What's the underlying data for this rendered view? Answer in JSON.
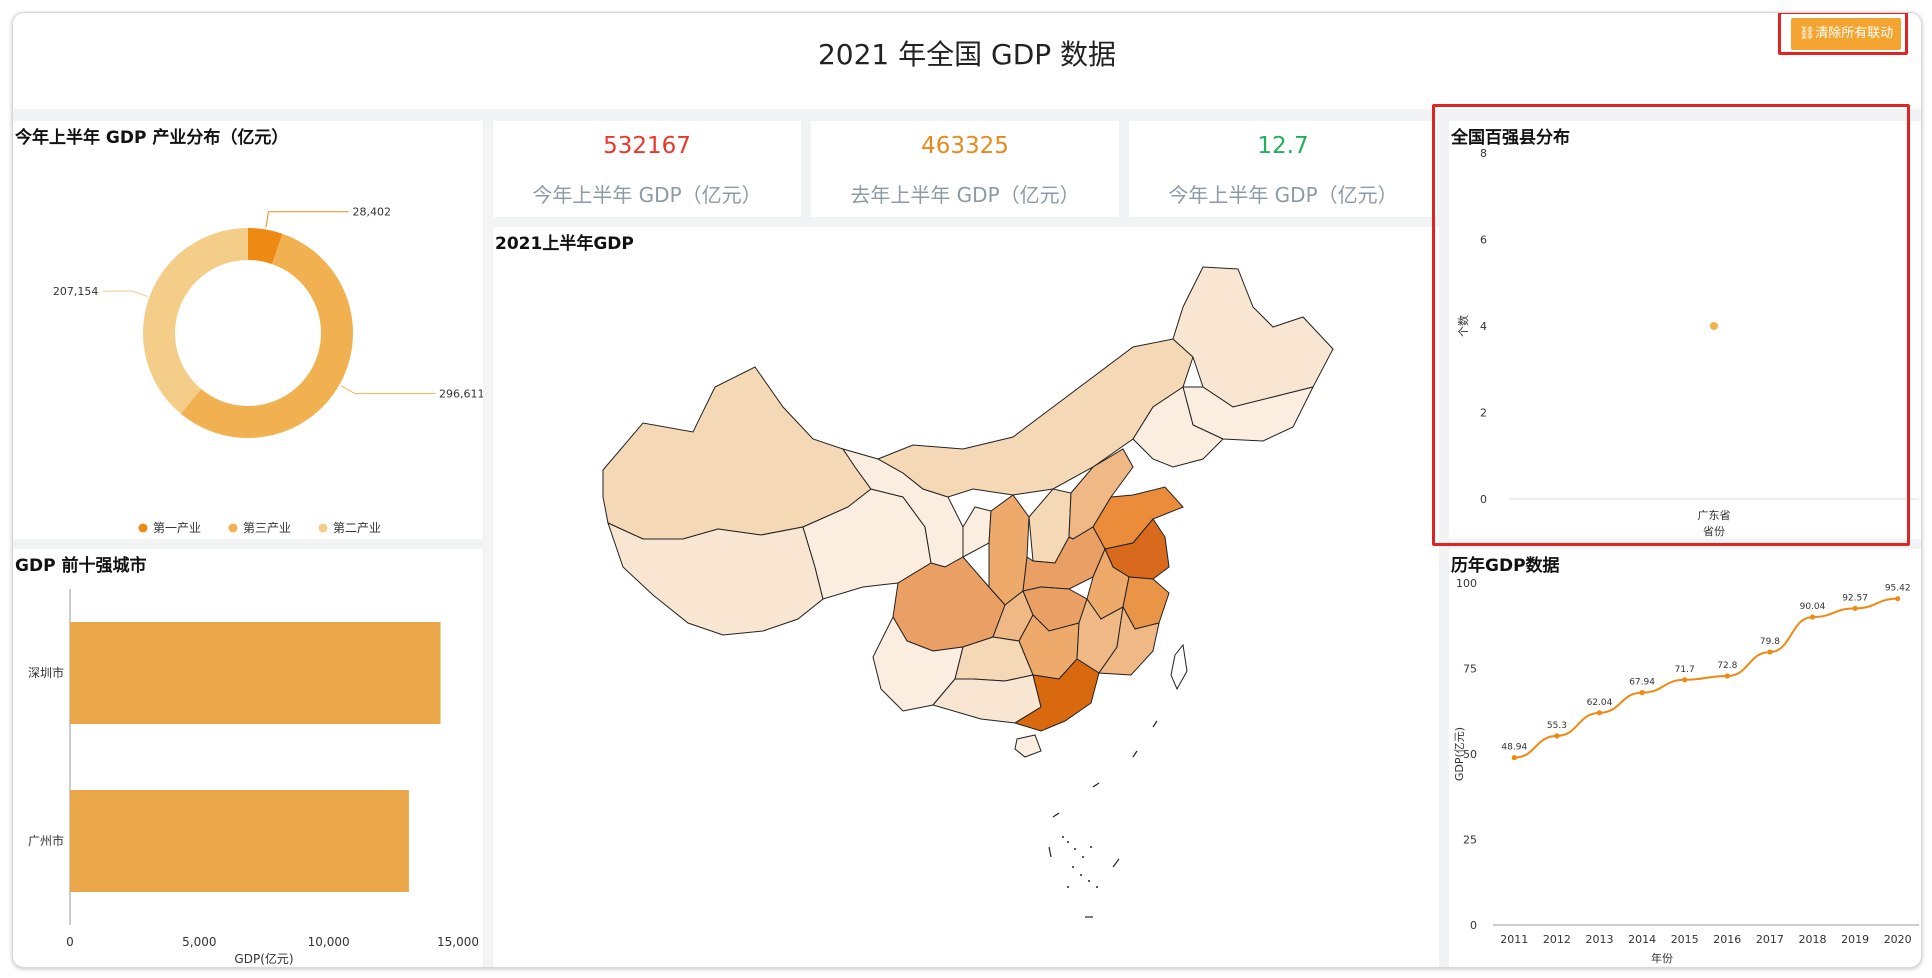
{
  "title": "2021 年全国 GDP 数据",
  "clear_button": {
    "label": "清除所有联动",
    "icon": "link-icon"
  },
  "colors": {
    "accent": "#f4a531",
    "kpi_red": "#e8382b",
    "kpi_orange": "#e78a1c",
    "kpi_green": "#23b058",
    "highlight": "#e02424"
  },
  "kpis": [
    {
      "value": "532167",
      "label": "今年上半年 GDP（亿元）"
    },
    {
      "value": "463325",
      "label": "去年上半年 GDP（亿元）"
    },
    {
      "value": "12.7",
      "label": "今年上半年 GDP（亿元）"
    }
  ],
  "pie_panel": {
    "title": "今年上半年 GDP 产业分布（亿元）"
  },
  "bar_panel": {
    "title": "GDP 前十强城市"
  },
  "map_panel": {
    "title": "2021上半年GDP"
  },
  "scatter_panel": {
    "title": "全国百强县分布"
  },
  "line_panel": {
    "title": "历年GDP数据"
  },
  "chart_data": [
    {
      "type": "pie",
      "title": "今年上半年 GDP 产业分布（亿元）",
      "slices": [
        {
          "name": "第一产业",
          "value": 28402,
          "label": "28,402",
          "color": "#ee8a13"
        },
        {
          "name": "第三产业",
          "value": 296611,
          "label": "296,611",
          "color": "#f2b150"
        },
        {
          "name": "第二产业",
          "value": 207154,
          "label": "207,154",
          "color": "#f4cd88"
        }
      ],
      "legend_position": "bottom"
    },
    {
      "type": "bar",
      "orientation": "horizontal",
      "title": "GDP 前十强城市",
      "categories": [
        "深圳市",
        "广州市"
      ],
      "values": [
        14325,
        13102
      ],
      "xlabel": "GDP(亿元)",
      "xlim": [
        0,
        15000
      ],
      "xticks": [
        "0",
        "5,000",
        "10,000",
        "15,000"
      ],
      "color": "#eaa74a"
    },
    {
      "type": "scatter",
      "title": "全国百强县分布",
      "categories": [
        "广东省"
      ],
      "values": [
        4
      ],
      "xlabel": "省份",
      "ylabel": "个数",
      "ylim": [
        0,
        8
      ],
      "yticks": [
        "0",
        "2",
        "4",
        "6",
        "8"
      ],
      "color": "#f2b150"
    },
    {
      "type": "line",
      "title": "历年GDP数据",
      "x": [
        "2011",
        "2012",
        "2013",
        "2014",
        "2015",
        "2016",
        "2017",
        "2018",
        "2019",
        "2020"
      ],
      "values": [
        48.94,
        55.3,
        62.04,
        67.94,
        71.7,
        72.8,
        79.8,
        90.04,
        92.57,
        95.42
      ],
      "data_labels": [
        "48.94",
        "55.3",
        "62.04",
        "67.94",
        "71.7",
        "72.8",
        "79.8",
        "90.04",
        "92.57",
        "95.42"
      ],
      "xlabel": "年份",
      "ylabel": "GDP(亿元)",
      "ylim": [
        0,
        100
      ],
      "yticks": [
        "0",
        "25",
        "50",
        "75",
        "100"
      ],
      "color": "#ee8a13"
    }
  ]
}
